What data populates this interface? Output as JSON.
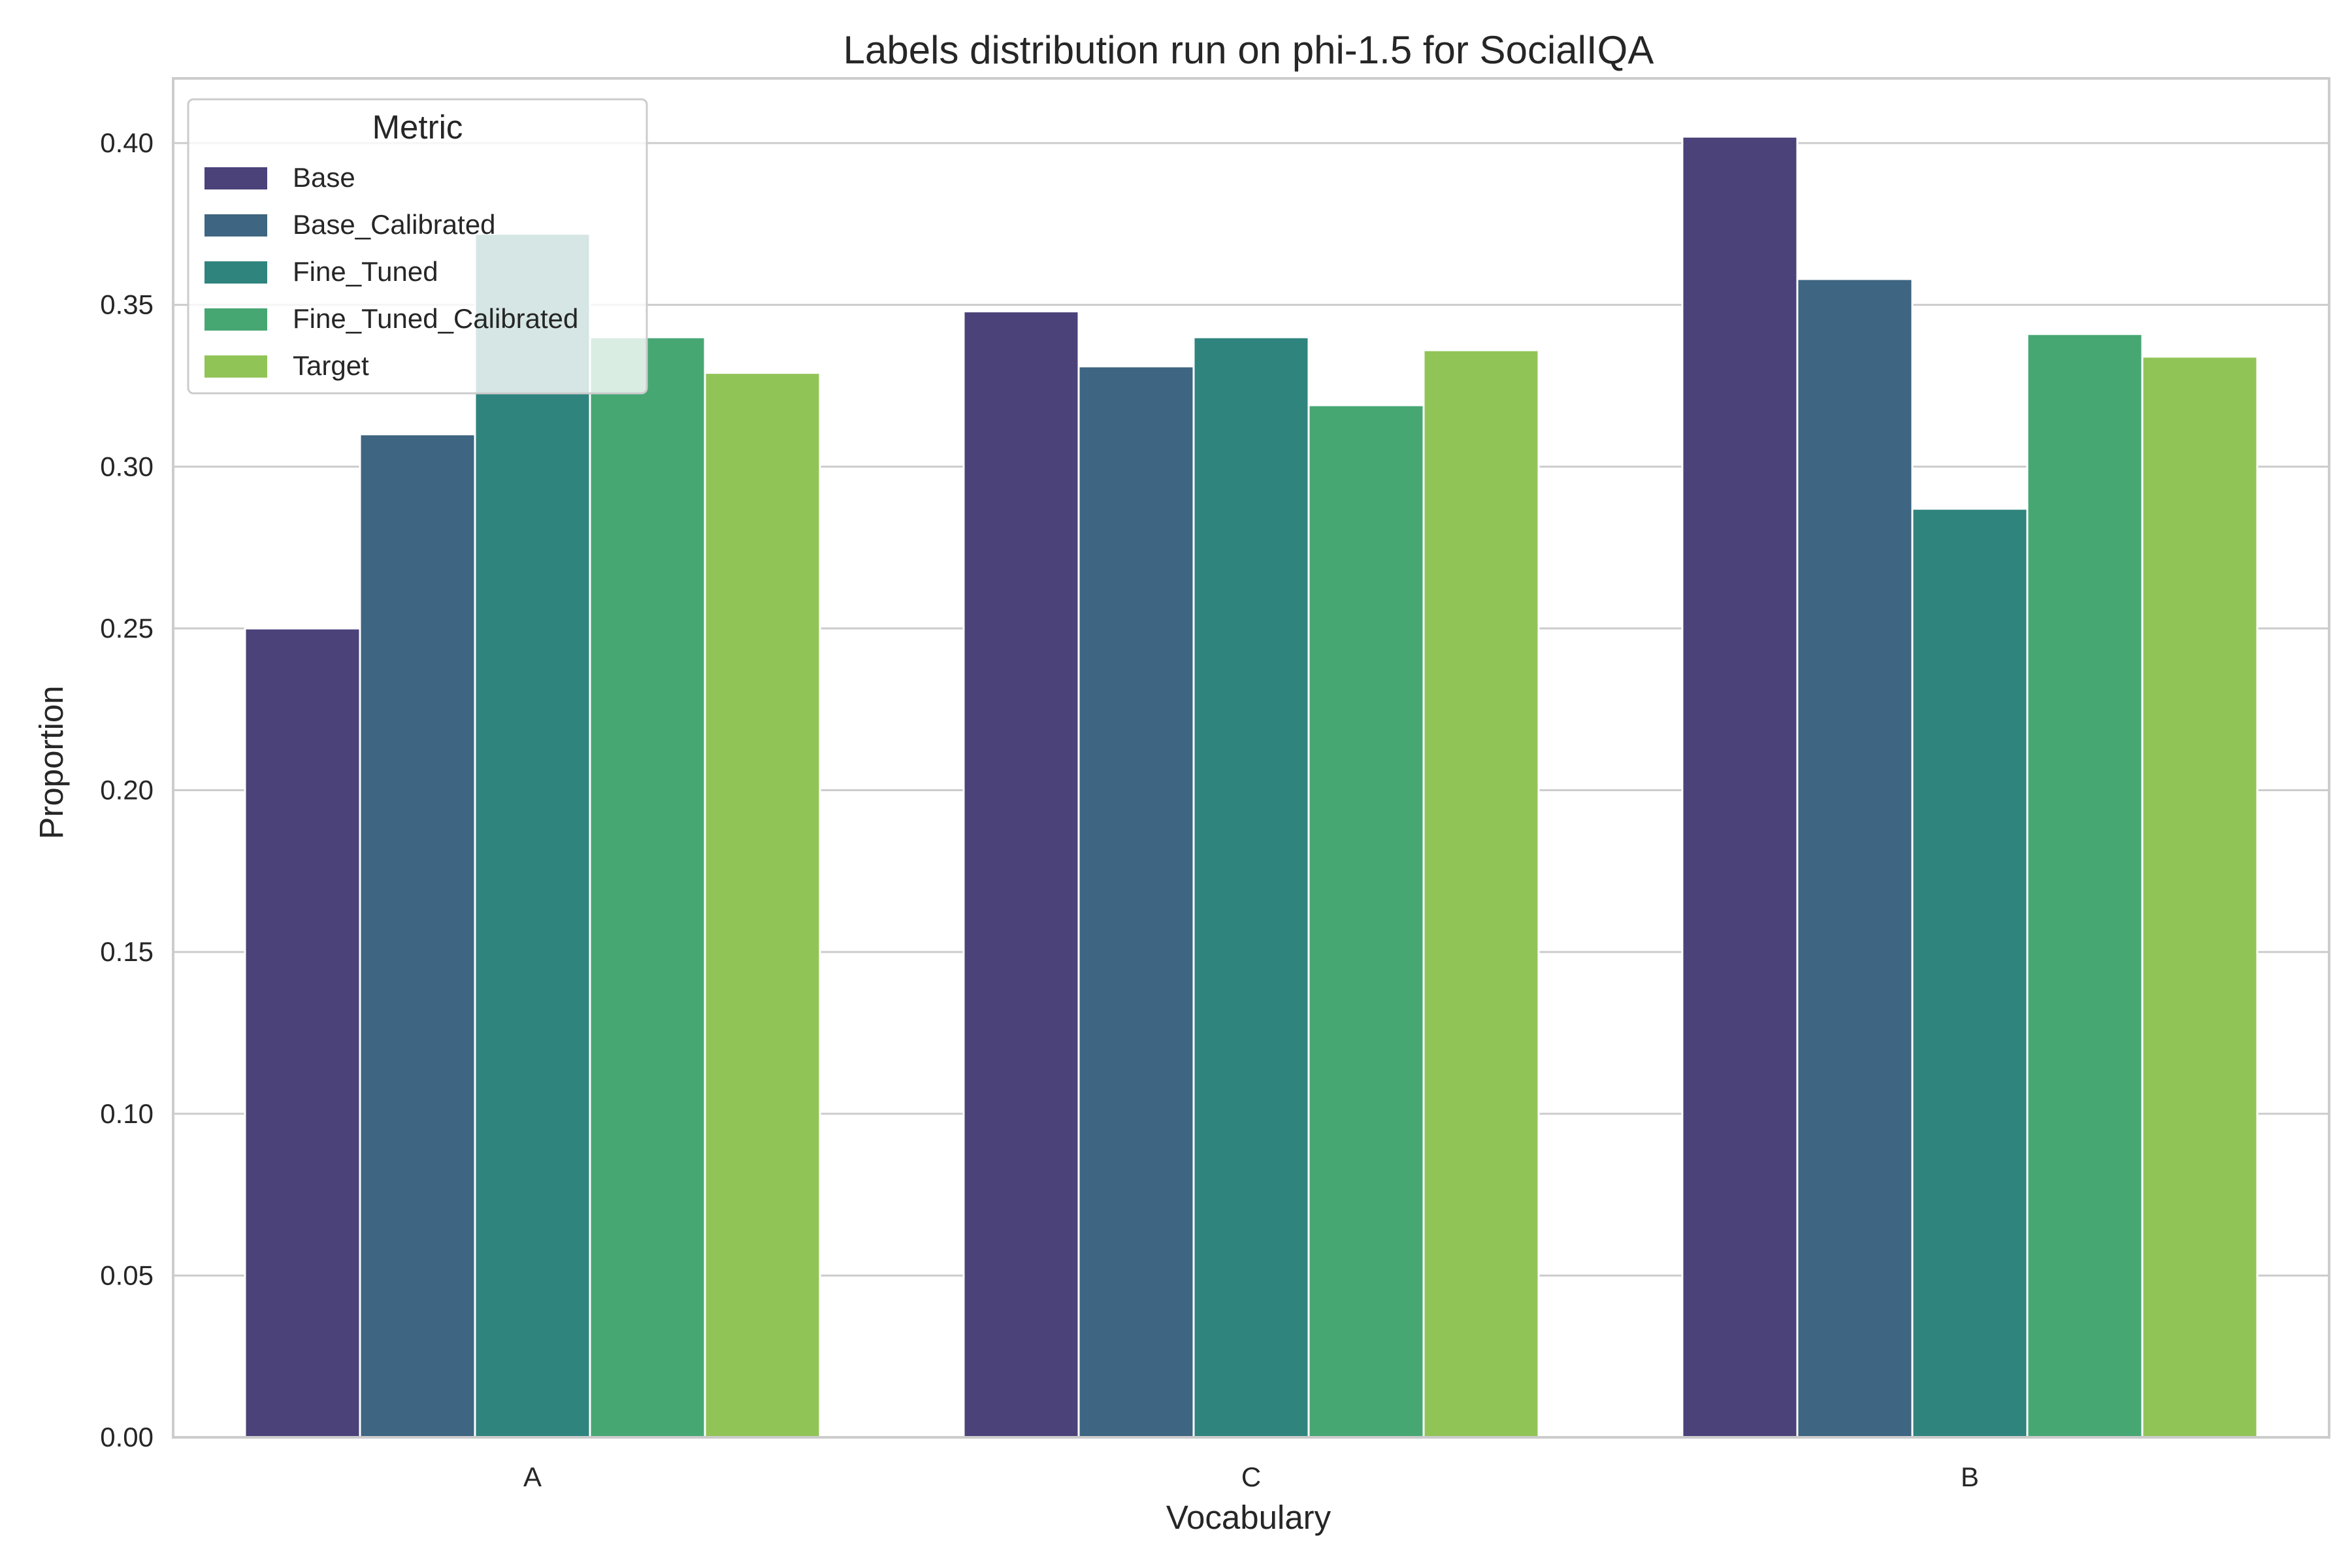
{
  "chart_data": {
    "type": "bar",
    "title": "Labels distribution run on phi-1.5 for SocialIQA",
    "xlabel": "Vocabulary",
    "ylabel": "Proportion",
    "categories": [
      "A",
      "C",
      "B"
    ],
    "ylim": [
      0,
      0.42
    ],
    "yticks": [
      "0.00",
      "0.05",
      "0.10",
      "0.15",
      "0.20",
      "0.25",
      "0.30",
      "0.35",
      "0.40"
    ],
    "grid": "horizontal",
    "legend": {
      "title": "Metric",
      "placement": "upper-left"
    },
    "series": [
      {
        "name": "Base",
        "color": "#4b427a",
        "values": [
          0.25,
          0.348,
          0.402
        ]
      },
      {
        "name": "Base_Calibrated",
        "color": "#3e6581",
        "values": [
          0.31,
          0.331,
          0.358
        ]
      },
      {
        "name": "Fine_Tuned",
        "color": "#2f847e",
        "values": [
          0.372,
          0.34,
          0.287
        ]
      },
      {
        "name": "Fine_Tuned_Calibrated",
        "color": "#47a773",
        "values": [
          0.34,
          0.319,
          0.341
        ]
      },
      {
        "name": "Target",
        "color": "#91c457",
        "values": [
          0.329,
          0.336,
          0.334
        ]
      }
    ]
  }
}
